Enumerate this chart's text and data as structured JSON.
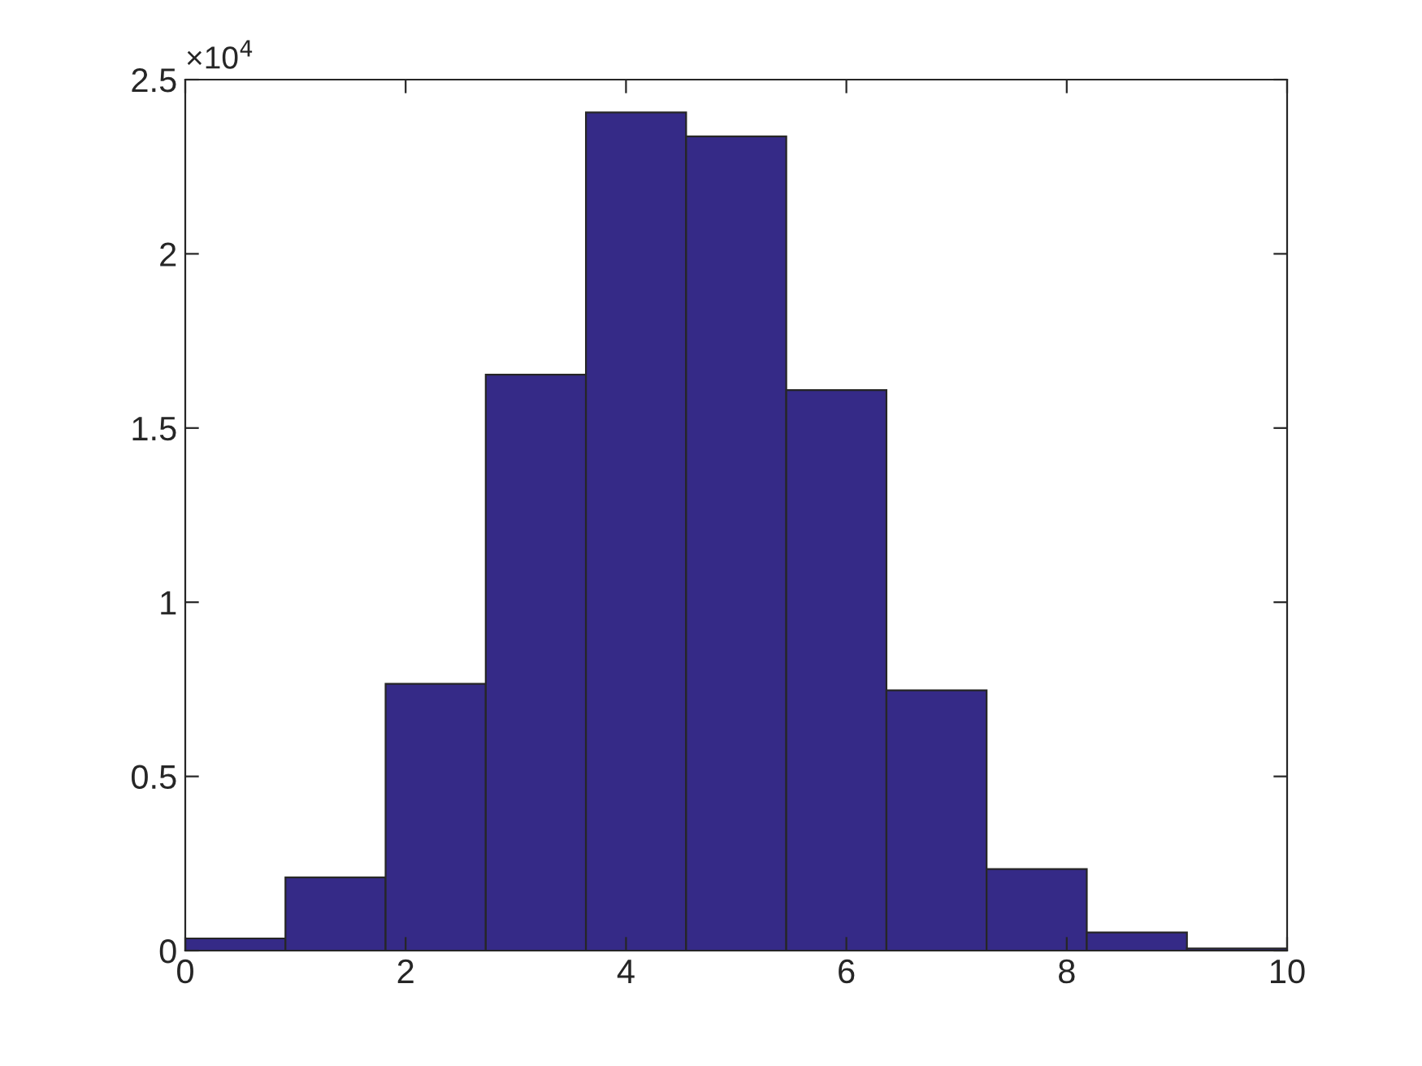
{
  "chart_data": {
    "type": "histogram",
    "bins": [
      0,
      0.9091,
      1.8182,
      2.7273,
      3.6364,
      4.5455,
      5.4545,
      6.3636,
      7.2727,
      8.1818,
      9.0909,
      10
    ],
    "values": [
      0.035,
      0.21,
      0.766,
      1.653,
      2.406,
      2.337,
      1.609,
      0.747,
      0.234,
      0.052,
      0.006
    ],
    "color": "#352a87",
    "xlim": [
      0,
      10
    ],
    "xticks": [
      0,
      2,
      4,
      6,
      8,
      10
    ],
    "ylim": [
      0,
      2.5
    ],
    "yticks": [
      0,
      0.5,
      1,
      1.5,
      2,
      2.5
    ],
    "annotations": [
      "×10$^{4}$"
    ],
    "grid": false,
    "legend": false
  }
}
